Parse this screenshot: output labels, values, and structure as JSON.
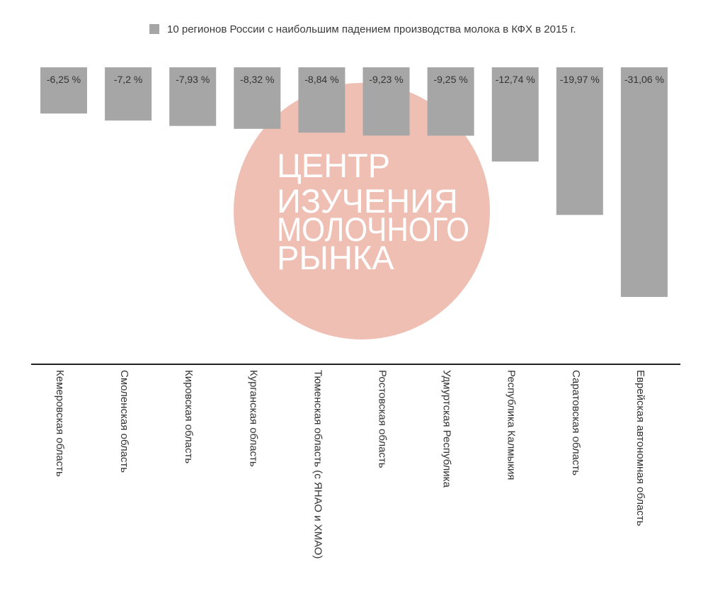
{
  "chart_data": {
    "type": "bar",
    "legend": "10 регионов России с наибольшим падением производства молока в КФХ в 2015 г.",
    "legend_position": "top",
    "categories": [
      "Кемеровская область",
      "Смоленская область",
      "Кировская область",
      "Курганская область",
      "Тюменская область (с ЯНАО и ХМАО)",
      "Ростовская область",
      "Удмуртская Республика",
      "Республика Калмыкия",
      "Саратовская область",
      "Еврейская автономная область"
    ],
    "values": [
      -6.25,
      -7.2,
      -7.93,
      -8.32,
      -8.84,
      -9.23,
      -9.25,
      -12.74,
      -19.97,
      -31.06
    ],
    "data_labels": [
      "-6,25 %",
      "-7,2 %",
      "-7,93 %",
      "-8,32 %",
      "-8,84 %",
      "-9,23 %",
      "-9,25 %",
      "-12,74 %",
      "-19,97 %",
      "-31,06 %"
    ],
    "ylim": [
      -31.06,
      0
    ],
    "grid": false
  },
  "watermark": {
    "lines": [
      "ЦЕНТР",
      "ИЗУЧЕНИЯ",
      "МОЛОЧНОГО",
      "РЫНКА"
    ]
  },
  "colors": {
    "bar": "#a6a6a6",
    "watermark_circle": "#efbfb4",
    "watermark_text": "#ffffff",
    "axis": "#222222",
    "text": "#333333"
  }
}
